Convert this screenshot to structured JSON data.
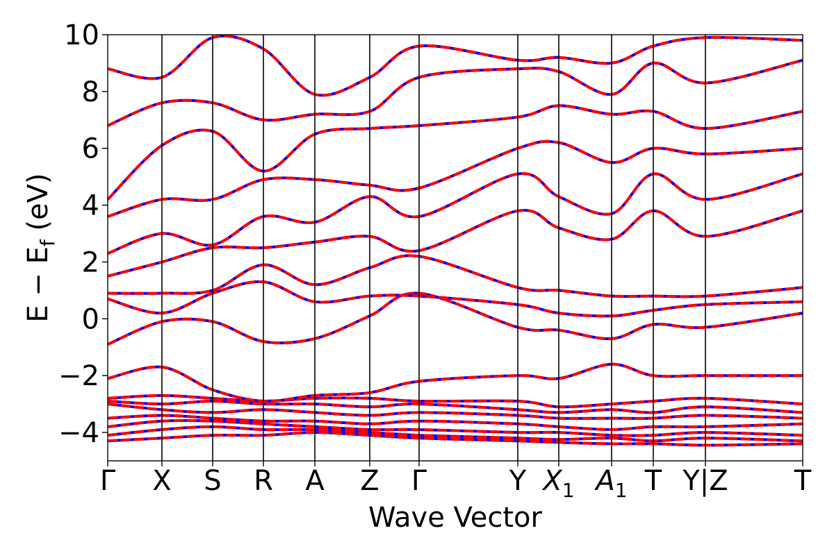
{
  "chart_data": {
    "type": "line",
    "title": "",
    "xlabel": "Wave Vector",
    "ylabel_main": "E − E",
    "ylabel_sub": "f",
    "ylabel_tail": " (eV)",
    "ylim": [
      -5,
      10
    ],
    "y_ticks": [
      {
        "value": -4,
        "label": "−4"
      },
      {
        "value": -2,
        "label": "−2"
      },
      {
        "value": 0,
        "label": "0"
      },
      {
        "value": 2,
        "label": "2"
      },
      {
        "value": 4,
        "label": "4"
      },
      {
        "value": 6,
        "label": "6"
      },
      {
        "value": 8,
        "label": "8"
      },
      {
        "value": 10,
        "label": "10"
      }
    ],
    "k_points": [
      {
        "x": 0.0,
        "label": "Γ"
      },
      {
        "x": 0.078,
        "label": "X"
      },
      {
        "x": 0.151,
        "label": "S"
      },
      {
        "x": 0.224,
        "label": "R"
      },
      {
        "x": 0.298,
        "label": "A"
      },
      {
        "x": 0.377,
        "label": "Z"
      },
      {
        "x": 0.448,
        "label": "Γ"
      },
      {
        "x": 0.59,
        "label": "Y"
      },
      {
        "x": 0.649,
        "label": "X",
        "sub": "1",
        "italic": true
      },
      {
        "x": 0.725,
        "label": "A",
        "sub": "1",
        "italic": true
      },
      {
        "x": 0.785,
        "label": "T"
      },
      {
        "x": 0.86,
        "label": "Y|Z"
      },
      {
        "x": 1.0,
        "label": "T"
      }
    ],
    "series": [
      {
        "color": "#0000ff",
        "style": "solid"
      },
      {
        "color": "#ff0000",
        "style": "dashed"
      }
    ],
    "bands": [
      [
        -4.3,
        -4.2,
        -4.1,
        -4.1,
        -4.0,
        -4.1,
        -4.2,
        -4.3,
        -4.35,
        -4.4,
        -4.4,
        -4.45,
        -4.4
      ],
      [
        -4.1,
        -3.9,
        -3.8,
        -3.9,
        -3.9,
        -4.0,
        -4.1,
        -4.2,
        -4.25,
        -4.2,
        -4.3,
        -4.2,
        -4.3
      ],
      [
        -3.8,
        -3.6,
        -3.6,
        -3.7,
        -3.8,
        -3.9,
        -3.9,
        -4.0,
        -4.0,
        -4.1,
        -4.1,
        -4.0,
        -4.1
      ],
      [
        -3.5,
        -3.4,
        -3.5,
        -3.6,
        -3.6,
        -3.7,
        -3.6,
        -3.7,
        -3.8,
        -3.9,
        -3.8,
        -3.8,
        -3.7
      ],
      [
        -3.0,
        -3.2,
        -3.3,
        -3.2,
        -3.3,
        -3.4,
        -3.3,
        -3.4,
        -3.5,
        -3.5,
        -3.5,
        -3.4,
        -3.5
      ],
      [
        -2.9,
        -3.0,
        -2.9,
        -3.0,
        -3.0,
        -3.1,
        -3.0,
        -3.2,
        -3.3,
        -3.2,
        -3.3,
        -3.1,
        -3.3
      ],
      [
        -2.8,
        -2.7,
        -2.8,
        -2.9,
        -2.8,
        -2.8,
        -2.9,
        -2.9,
        -3.1,
        -3.0,
        -2.9,
        -2.8,
        -3.0
      ],
      [
        -2.1,
        -1.7,
        -2.5,
        -2.9,
        -2.7,
        -2.6,
        -2.2,
        -2.0,
        -2.1,
        -1.6,
        -2.0,
        -2.0,
        -2.0
      ],
      [
        -0.9,
        -0.1,
        -0.1,
        -0.8,
        -0.7,
        0.1,
        0.9,
        -0.3,
        -0.4,
        -0.7,
        -0.2,
        -0.3,
        0.2
      ],
      [
        0.7,
        0.2,
        0.9,
        1.3,
        0.6,
        0.8,
        0.8,
        0.5,
        0.2,
        0.1,
        0.3,
        0.5,
        0.6
      ],
      [
        0.9,
        0.9,
        1.0,
        1.9,
        1.2,
        1.8,
        2.2,
        1.1,
        1.0,
        0.8,
        0.8,
        0.8,
        1.1
      ],
      [
        1.5,
        2.0,
        2.5,
        2.5,
        2.7,
        2.9,
        2.4,
        3.8,
        3.2,
        2.8,
        3.8,
        2.9,
        3.8
      ],
      [
        2.3,
        3.0,
        2.6,
        3.6,
        3.4,
        4.3,
        3.6,
        5.1,
        4.3,
        3.7,
        5.1,
        4.2,
        5.1
      ],
      [
        3.6,
        4.2,
        4.2,
        4.9,
        4.9,
        4.7,
        4.6,
        6.0,
        6.2,
        5.5,
        6.0,
        5.8,
        6.0
      ],
      [
        4.2,
        6.1,
        6.6,
        5.2,
        6.5,
        6.7,
        6.8,
        7.1,
        7.5,
        7.2,
        7.3,
        6.7,
        7.3
      ],
      [
        6.8,
        7.6,
        7.6,
        7.0,
        7.2,
        7.3,
        8.5,
        8.8,
        8.7,
        7.9,
        9.0,
        8.3,
        9.1
      ],
      [
        8.8,
        8.5,
        9.9,
        9.5,
        7.9,
        8.5,
        9.6,
        9.1,
        9.2,
        9.0,
        9.6,
        9.9,
        9.8
      ]
    ]
  }
}
